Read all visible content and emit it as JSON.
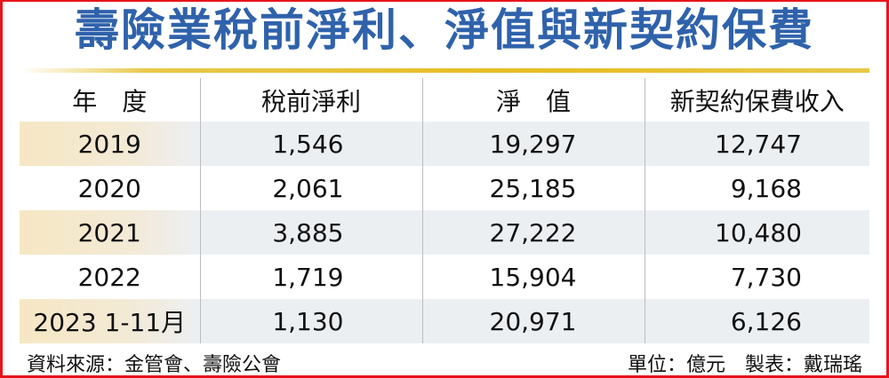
{
  "title": "壽險業稅前淨利、淨值與新契約保費",
  "headers": [
    "年　度",
    "稅前淨利",
    "淨　值",
    "新契約保費收入"
  ],
  "rows": [
    [
      "2019",
      "1,546",
      "19,297",
      "12,747"
    ],
    [
      "2020",
      "2,061",
      "25,185",
      "9,168"
    ],
    [
      "2021",
      "3,885",
      "27,222",
      "10,480"
    ],
    [
      "2022",
      "1,719",
      "15,904",
      "7,730"
    ],
    [
      "2023 1-11月",
      "1,130",
      "20,971",
      "6,126"
    ]
  ],
  "footer": {
    "source": "資料來源：金管會、壽險公會",
    "unit": "單位：億元",
    "maker": "製表：戴瑞瑤"
  },
  "colors": {
    "title": "#2f62ab",
    "border": "#e8141b",
    "rule": "#e6bd22",
    "shade": "#eceff2"
  }
}
